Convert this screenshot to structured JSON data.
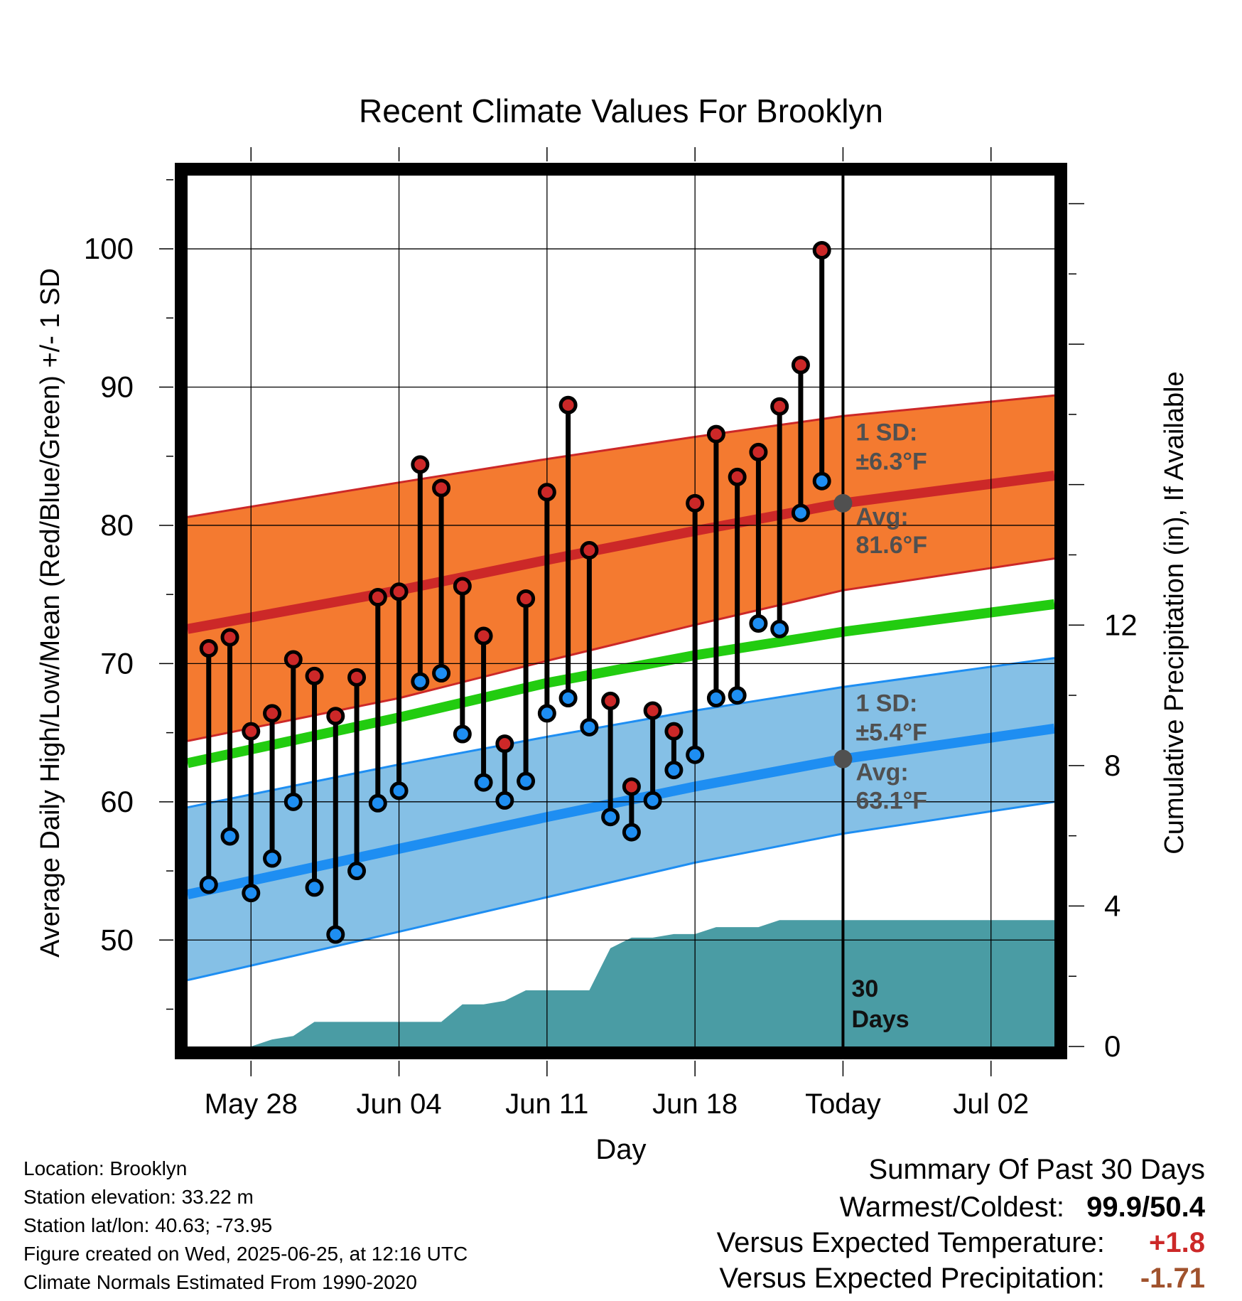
{
  "chart_data": {
    "type": "line",
    "title": "Recent Climate Values For Brooklyn",
    "xlabel": "Day",
    "ylabel": "Average Daily High/Low/Mean (Red/Blue/Green) +/- 1 SD",
    "y2label": "Cumulative Precipitation (in), If Available",
    "ylim": [
      42.3,
      105.3
    ],
    "y2lim": [
      0,
      24.8
    ],
    "yticks": [
      "100",
      "90",
      "80",
      "70",
      "60",
      "50"
    ],
    "y2ticks": [
      "12",
      "8",
      "4",
      "0"
    ],
    "xlim": [
      "2025-05-25",
      "2025-07-05"
    ],
    "xticks": [
      {
        "date": "2025-05-28",
        "label": "May 28"
      },
      {
        "date": "2025-06-04",
        "label": "Jun 04"
      },
      {
        "date": "2025-06-11",
        "label": "Jun 11"
      },
      {
        "date": "2025-06-18",
        "label": "Jun 18"
      },
      {
        "date": "2025-06-25",
        "label": "Today"
      },
      {
        "date": "2025-07-02",
        "label": "Jul 02"
      }
    ],
    "today": "2025-06-25",
    "grid": true,
    "daily": {
      "dates": [
        "2025-05-26",
        "2025-05-27",
        "2025-05-28",
        "2025-05-29",
        "2025-05-30",
        "2025-05-31",
        "2025-06-01",
        "2025-06-02",
        "2025-06-03",
        "2025-06-04",
        "2025-06-05",
        "2025-06-06",
        "2025-06-07",
        "2025-06-08",
        "2025-06-09",
        "2025-06-10",
        "2025-06-11",
        "2025-06-12",
        "2025-06-13",
        "2025-06-14",
        "2025-06-15",
        "2025-06-16",
        "2025-06-17",
        "2025-06-18",
        "2025-06-19",
        "2025-06-20",
        "2025-06-21",
        "2025-06-22",
        "2025-06-23",
        "2025-06-24"
      ],
      "highs": [
        71.1,
        71.9,
        65.1,
        66.4,
        70.3,
        69.1,
        66.2,
        69.0,
        74.8,
        75.2,
        84.4,
        82.7,
        75.6,
        72.0,
        64.2,
        74.7,
        82.4,
        88.7,
        78.2,
        67.3,
        61.1,
        66.6,
        65.1,
        81.6,
        86.6,
        83.5,
        85.3,
        88.6,
        91.6,
        99.9
      ],
      "lows": [
        54.0,
        57.5,
        53.4,
        55.9,
        60.0,
        53.8,
        50.4,
        55.0,
        59.9,
        60.8,
        68.7,
        69.3,
        64.9,
        61.4,
        60.1,
        61.5,
        66.4,
        67.5,
        65.4,
        58.9,
        57.8,
        60.1,
        62.3,
        63.4,
        67.5,
        67.7,
        72.9,
        72.5,
        80.9,
        83.2
      ]
    },
    "normals": {
      "dates": [
        "2025-05-25",
        "2025-06-04",
        "2025-06-11",
        "2025-06-18",
        "2025-06-25",
        "2025-07-05"
      ],
      "high_mean": [
        72.5,
        75.3,
        77.5,
        79.6,
        81.6,
        83.6
      ],
      "high_sd_upper": [
        80.6,
        83.1,
        84.8,
        86.4,
        87.9,
        89.4
      ],
      "high_sd_lower": [
        64.4,
        67.5,
        70.2,
        72.8,
        75.3,
        77.6
      ],
      "mean": [
        62.8,
        66.1,
        68.6,
        70.6,
        72.3,
        74.3
      ],
      "low_mean": [
        53.3,
        56.6,
        58.9,
        61.1,
        63.1,
        65.3
      ],
      "low_sd_upper": [
        59.6,
        62.7,
        64.7,
        66.6,
        68.3,
        70.4
      ],
      "low_sd_lower": [
        47.1,
        50.6,
        53.1,
        55.6,
        57.7,
        60.0
      ]
    },
    "precipitation": {
      "dates": [
        "2025-05-28",
        "2025-05-29",
        "2025-05-30",
        "2025-05-31",
        "2025-06-01",
        "2025-06-02",
        "2025-06-03",
        "2025-06-04",
        "2025-06-05",
        "2025-06-06",
        "2025-06-07",
        "2025-06-08",
        "2025-06-09",
        "2025-06-10",
        "2025-06-11",
        "2025-06-12",
        "2025-06-13",
        "2025-06-14",
        "2025-06-15",
        "2025-06-16",
        "2025-06-17",
        "2025-06-18",
        "2025-06-19",
        "2025-06-20",
        "2025-06-21",
        "2025-06-22",
        "2025-06-23",
        "2025-06-24",
        "2025-06-25",
        "2025-07-05"
      ],
      "values": [
        0.0,
        0.2,
        0.3,
        0.7,
        0.7,
        0.7,
        0.7,
        0.7,
        0.7,
        0.7,
        1.2,
        1.2,
        1.3,
        1.6,
        1.6,
        1.6,
        1.6,
        2.8,
        3.1,
        3.1,
        3.2,
        3.2,
        3.4,
        3.4,
        3.4,
        3.6,
        3.6,
        3.6,
        3.6,
        3.6
      ]
    },
    "annotations": {
      "high_sd_label": "1 SD:",
      "high_sd_value": "±6.3°F",
      "high_avg_label": "Avg:",
      "high_avg_value": "81.6°F",
      "low_sd_label": "1 SD:",
      "low_sd_value": "±5.4°F",
      "low_avg_label": "Avg:",
      "low_avg_value": "63.1°F",
      "days_count": "30",
      "days_word": "Days"
    },
    "colors": {
      "high_band": "#f47a30",
      "high_line": "#cc2828",
      "low_band": "#85c0e6",
      "low_line": "#1e8ef2",
      "mean_line": "#22cc10",
      "precip": "#4a9ca4",
      "high_dot": "#cc2828",
      "low_dot": "#1e8ef2",
      "annotation": "#505050"
    }
  },
  "info": {
    "location": "Location: Brooklyn",
    "elevation": "Station elevation: 33.22 m",
    "latlon": "Station lat/lon: 40.63; -73.95",
    "created": "Figure created on Wed, 2025-06-25, at 12:16 UTC",
    "normals": "Climate Normals Estimated From 1990-2020"
  },
  "summary": {
    "heading": "Summary Of Past 30 Days",
    "warm_cold_label": "Warmest/Coldest:",
    "warm_cold_value": "99.9/50.4",
    "temp_label": "Versus Expected Temperature:",
    "temp_value": "+1.8",
    "temp_color": "#cc2828",
    "precip_label": "Versus Expected Precipitation:",
    "precip_value": "-1.71",
    "precip_color": "#a0522d"
  }
}
